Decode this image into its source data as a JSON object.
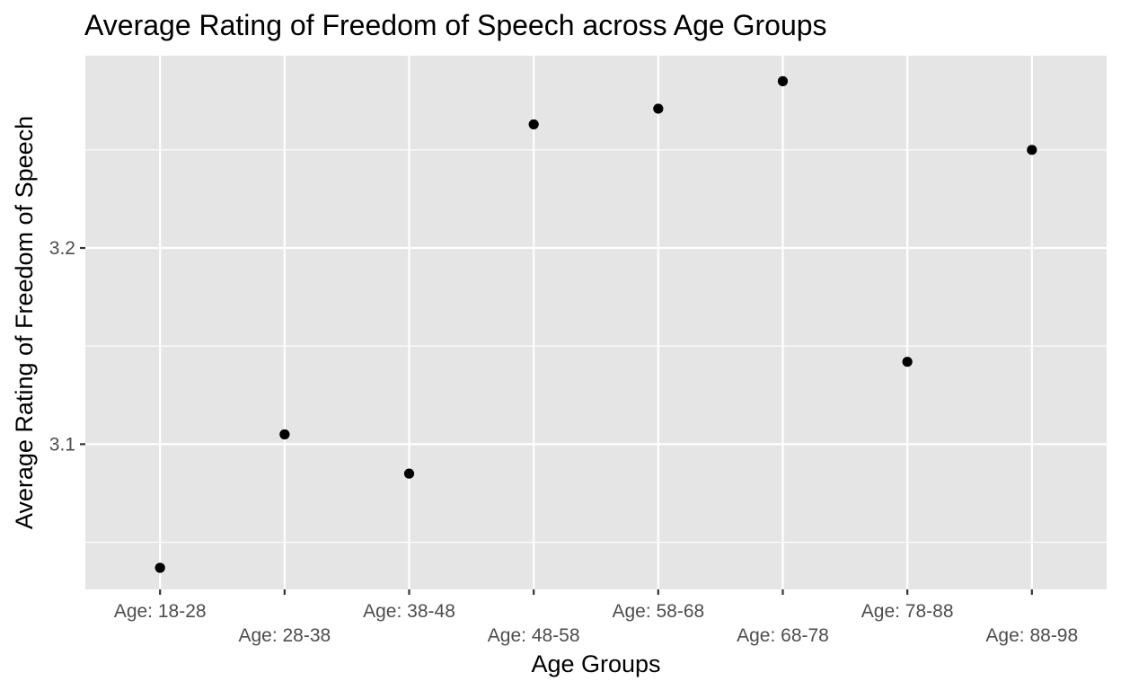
{
  "chart_data": {
    "type": "scatter",
    "title": "Average Rating of Freedom of Speech across Age Groups",
    "xlabel": "Age Groups",
    "ylabel": "Average Rating of Freedom of Speech",
    "categories": [
      "Age: 18-28",
      "Age: 28-38",
      "Age: 38-48",
      "Age: 48-58",
      "Age: 58-68",
      "Age: 68-78",
      "Age: 78-88",
      "Age: 88-98"
    ],
    "values": [
      3.037,
      3.105,
      3.085,
      3.263,
      3.271,
      3.285,
      3.142,
      3.25
    ],
    "ylim": [
      3.026,
      3.298
    ],
    "y_ticks": [
      3.1,
      3.2
    ],
    "y_tick_labels": [
      "3.1",
      "3.2"
    ],
    "y_minor_ticks": [
      3.05,
      3.15,
      3.25
    ],
    "x_labels_staggered": true,
    "grid": true,
    "point_color": "#000000",
    "panel_color": "#e5e5e5"
  }
}
